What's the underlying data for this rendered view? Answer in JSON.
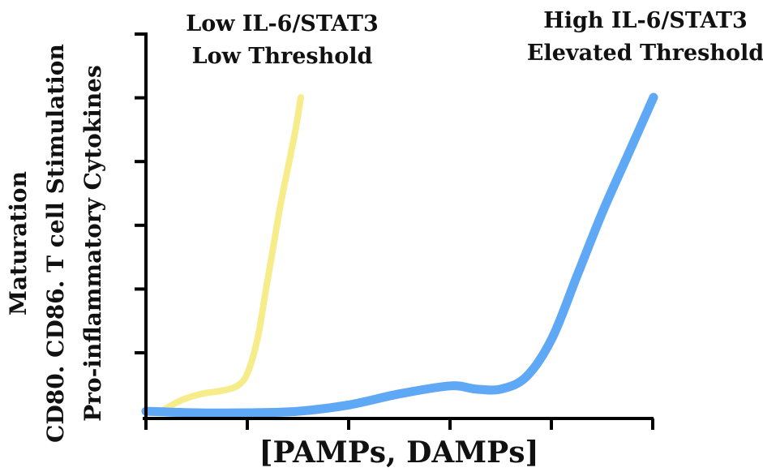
{
  "chart_data": {
    "type": "line",
    "title": "",
    "xlabel": "[PAMPs, DAMPs]",
    "ylabel_lines": [
      "Maturation",
      "CD80. CD86. T cell Stimulation",
      "Pro-inflammatory Cytokines"
    ],
    "xlim": [
      0,
      10
    ],
    "ylim": [
      0,
      10
    ],
    "grid": false,
    "x_tick_count": 6,
    "y_tick_count": 6,
    "annotations": [
      {
        "lines": [
          "Low IL-6/STAT3",
          "Low Threshold"
        ],
        "anchor": "above-left-curve"
      },
      {
        "lines": [
          "High IL-6/STAT3",
          "Elevated Threshold"
        ],
        "anchor": "top-right"
      }
    ],
    "series": [
      {
        "color": "#f6ec8a",
        "x": [
          0.3,
          0.7,
          1.1,
          1.5,
          1.8,
          2.0,
          2.2,
          2.35,
          2.5,
          2.65,
          2.8,
          2.95,
          3.05
        ],
        "y": [
          0.1,
          0.45,
          0.65,
          0.75,
          0.9,
          1.3,
          2.4,
          3.8,
          5.2,
          6.6,
          7.8,
          9.0,
          10.0
        ]
      },
      {
        "color": "#5ea8f5",
        "x": [
          0,
          1,
          2,
          3,
          4,
          5,
          6,
          6.5,
          7,
          7.5,
          8,
          8.5,
          9,
          9.5,
          10
        ],
        "y": [
          0.1,
          0.05,
          0.05,
          0.1,
          0.3,
          0.65,
          0.9,
          0.8,
          0.8,
          1.2,
          2.4,
          4.4,
          6.4,
          8.2,
          10.0
        ]
      }
    ]
  }
}
